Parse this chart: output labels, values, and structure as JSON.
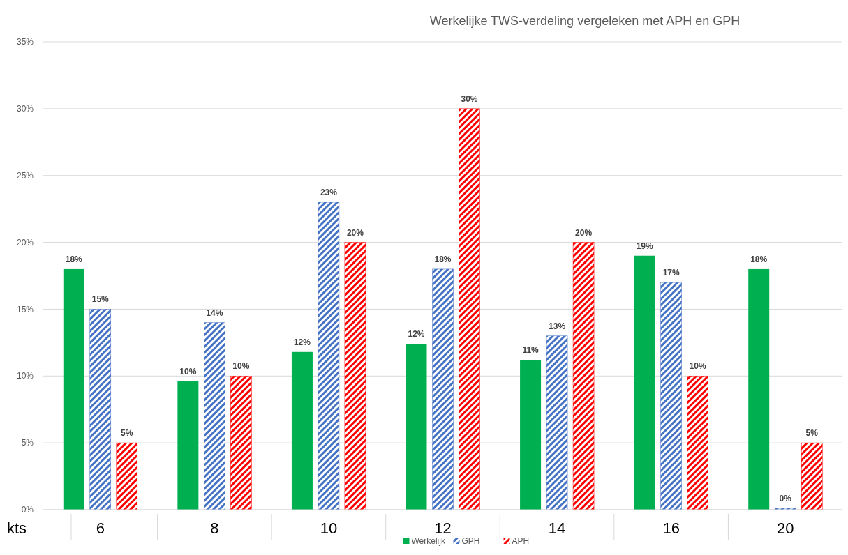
{
  "chart_data": {
    "type": "bar",
    "title": "Werkelijke TWS-verdeling vergeleken met APH en GPH",
    "xlabel": "kts",
    "categories": [
      "6",
      "8",
      "10",
      "12",
      "14",
      "16",
      "20"
    ],
    "series": [
      {
        "name": "Werkelijk",
        "color": "#00b050",
        "values": [
          18,
          9.6,
          11.8,
          12.4,
          11.2,
          19.0,
          18
        ],
        "value_labels": [
          "18%",
          "10%",
          "12%",
          "12%",
          "11%",
          "19%",
          "18%"
        ]
      },
      {
        "name": "GPH",
        "color": "#4472c4",
        "values": [
          15,
          14,
          23,
          18,
          13,
          17,
          0.1
        ],
        "value_labels": [
          "15%",
          "14%",
          "23%",
          "18%",
          "13%",
          "17%",
          "0%"
        ]
      },
      {
        "name": "APH",
        "color": "#ff0000",
        "values": [
          5,
          10,
          20,
          30,
          20,
          10,
          5
        ],
        "value_labels": [
          "5%",
          "10%",
          "20%",
          "30%",
          "20%",
          "10%",
          "5%"
        ]
      }
    ],
    "ylim": [
      0,
      35
    ],
    "yticks": [
      {
        "value": 0,
        "label": "0%"
      },
      {
        "value": 5,
        "label": "5%"
      },
      {
        "value": 10,
        "label": "10%"
      },
      {
        "value": 15,
        "label": "15%"
      },
      {
        "value": 20,
        "label": "20%"
      },
      {
        "value": 25,
        "label": "25%"
      },
      {
        "value": 30,
        "label": "30%"
      },
      {
        "value": 35,
        "label": "35%"
      }
    ],
    "grid": "y",
    "legend": "bottom"
  }
}
